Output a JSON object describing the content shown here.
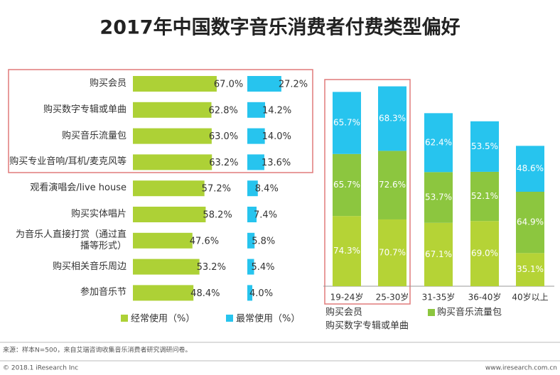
{
  "title": "2017年中国数字音乐消费者付费类型偏好",
  "chart_data": [
    {
      "type": "hbar",
      "categories": [
        "购买会员",
        "购买数字专辑或单曲",
        "购买音乐流量包",
        "购买专业音响/耳机/麦克风等",
        "观看演唱会/live house",
        "购买实体唱片",
        "为音乐人直接打赏（通过直播等形式）",
        "购买相关音乐周边",
        "参加音乐节"
      ],
      "series": [
        {
          "name": "经常使用（%）",
          "color": "#add136",
          "values": [
            67.0,
            62.8,
            63.0,
            63.2,
            57.2,
            58.2,
            47.6,
            53.2,
            48.4
          ],
          "value_labels": [
            "67.0%",
            "62.8%",
            "63.0%",
            "63.2%",
            "57.2%",
            "58.2%",
            "47.6%",
            "53.2%",
            "48.4%"
          ]
        },
        {
          "name": "最常使用（%）",
          "color": "#27c4ee",
          "values": [
            27.2,
            14.2,
            14.0,
            13.6,
            8.4,
            7.4,
            5.8,
            5.4,
            4.0
          ],
          "value_labels": [
            "27.2%",
            "14.2%",
            "14.0%",
            "13.6%",
            "8.4%",
            "7.4%",
            "5.8%",
            "5.4%",
            "4.0%"
          ]
        }
      ]
    },
    {
      "type": "stacked_bar",
      "categories": [
        "19-24岁",
        "25-30岁",
        "31-35岁",
        "36-40岁",
        "40岁以上"
      ],
      "series": [
        {
          "name": "购买会员",
          "color": "#b5d336",
          "values": [
            74.3,
            70.7,
            67.1,
            69.0,
            35.1
          ],
          "value_labels": [
            "74.3%",
            "70.7%",
            "67.1%",
            "69.0%",
            "35.1%"
          ]
        },
        {
          "name": "购买音乐流量包",
          "color": "#8cc63f",
          "values": [
            65.7,
            72.6,
            53.7,
            52.1,
            64.9
          ],
          "value_labels": [
            "65.7%",
            "72.6%",
            "53.7%",
            "52.1%",
            "64.9%"
          ]
        },
        {
          "name": "购买数字专辑或单曲",
          "color": "#27c4ee",
          "values": [
            65.7,
            68.3,
            62.4,
            53.5,
            48.6
          ],
          "value_labels": [
            "65.7%",
            "68.3%",
            "62.4%",
            "53.5%",
            "48.6%"
          ]
        }
      ]
    }
  ],
  "source": "来源：样本N=500，来自艾瑞咨询收集音乐消费者研究调研问卷。",
  "copyright": "© 2018.1 iResearch Inc",
  "website": "www.iresearch.com.cn"
}
